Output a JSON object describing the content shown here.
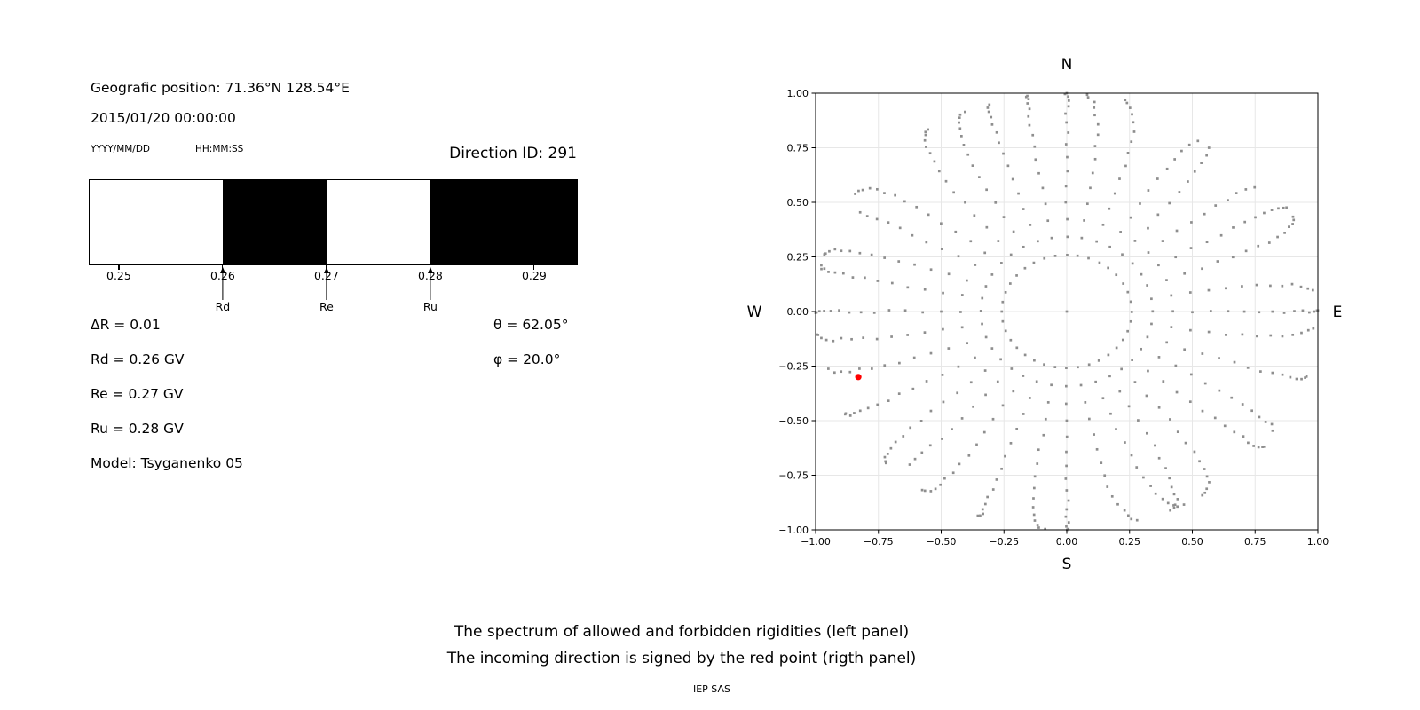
{
  "header": {
    "position_label": "Geografic position: 71.36°N 128.54°E",
    "datetime": "2015/01/20 00:00:00",
    "date_format_hint": "YYYY/MM/DD",
    "time_format_hint": "HH:MM:SS",
    "direction_id_label": "Direction ID: 291"
  },
  "info": {
    "delta_r": "ΔR = 0.01",
    "rd": "Rd = 0.26 GV",
    "re": "Re = 0.27 GV",
    "ru": "Ru = 0.28 GV",
    "model": "Model: Tsyganenko 05",
    "theta": "θ = 62.05°",
    "phi": "φ = 20.0°"
  },
  "caption": {
    "line1": "The spectrum of allowed and forbidden rigidities (left panel)",
    "line2": "The incoming direction is signed by the red point (rigth panel)",
    "credit": "IEP SAS"
  },
  "colors": {
    "text": "#000000",
    "grid": "#e7e7e7",
    "frame": "#000000",
    "dot_gray": "#8e8e8e",
    "red_point": "#ff0000",
    "forbidden": "#000000",
    "allowed": "#ffffff"
  },
  "chart_data": [
    {
      "id": "rigidity-spectrum",
      "type": "bar",
      "description": "Allowed (white) and forbidden (black) rigidity bands in GV",
      "xlim": [
        0.2471,
        0.2942
      ],
      "xticks": [
        0.25,
        0.26,
        0.27,
        0.28,
        0.29
      ],
      "xtick_labels": [
        "0.25",
        "0.26",
        "0.27",
        "0.28",
        "0.29"
      ],
      "segments": [
        {
          "from": 0.2471,
          "to": 0.26,
          "state": "allowed"
        },
        {
          "from": 0.26,
          "to": 0.27,
          "state": "forbidden"
        },
        {
          "from": 0.27,
          "to": 0.28,
          "state": "allowed"
        },
        {
          "from": 0.28,
          "to": 0.2942,
          "state": "forbidden"
        }
      ],
      "markers": [
        {
          "value": 0.26,
          "label": "Rd"
        },
        {
          "value": 0.27,
          "label": "Re"
        },
        {
          "value": 0.28,
          "label": "Ru"
        }
      ],
      "delta_R": 0.01,
      "Rd_GV": 0.26,
      "Re_GV": 0.27,
      "Ru_GV": 0.28,
      "model": "Tsyganenko 05"
    },
    {
      "id": "direction-map",
      "type": "scatter",
      "description": "Sky map of incoming directions; radial dotted spokes every 10° azimuth, radius = sin(zenith)",
      "xlim": [
        -1,
        1
      ],
      "ylim": [
        -1,
        1
      ],
      "xticks": [
        -1,
        -0.75,
        -0.5,
        -0.25,
        0,
        0.25,
        0.5,
        0.75,
        1
      ],
      "xtick_labels": [
        "−1.00",
        "−0.75",
        "−0.50",
        "−0.25",
        "0.00",
        "0.25",
        "0.50",
        "0.75",
        "1.00"
      ],
      "yticks": [
        -1,
        -0.75,
        -0.5,
        -0.25,
        0,
        0.25,
        0.5,
        0.75,
        1
      ],
      "ytick_labels": [
        "−1.00",
        "−0.75",
        "−0.50",
        "−0.25",
        "0.00",
        "0.25",
        "0.50",
        "0.75",
        "1.00"
      ],
      "grid": true,
      "compass": {
        "top": "N",
        "bottom": "S",
        "left": "W",
        "right": "E"
      },
      "dots": {
        "color": "#8e8e8e",
        "marker": "square",
        "azimuth_start_deg": 0,
        "azimuth_step_deg": 10,
        "azimuth_count": 36,
        "zenith_min_deg": 15,
        "zenith_max_deg": 90,
        "zenith_step_deg": 5,
        "radius_rule": "r = sin(zenith)",
        "inner_ring_radius": 0.25,
        "center_dot": true
      },
      "red_point": {
        "x": -0.83,
        "y": -0.3,
        "color": "#ff0000",
        "theta_deg": 62.05,
        "phi_deg": 20.0
      }
    }
  ]
}
